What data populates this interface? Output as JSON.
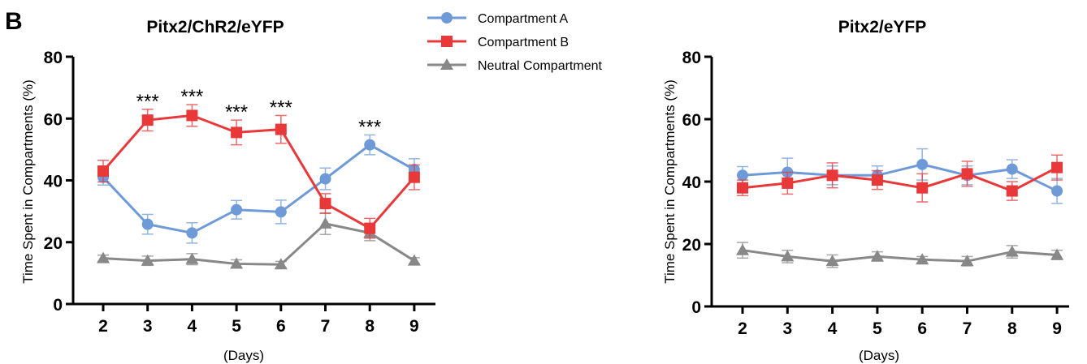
{
  "panel_label": "B",
  "legend": [
    {
      "label": "Compartment A",
      "color": "#6f9ad8",
      "marker": "circle"
    },
    {
      "label": "Compartment B",
      "color": "#e8383a",
      "marker": "square"
    },
    {
      "label": "Neutral Compartment",
      "color": "#888888",
      "marker": "triangle"
    }
  ],
  "chart_data": [
    {
      "type": "line",
      "title": "Pitx2/ChR2/eYFP",
      "xlabel": "(Days)",
      "ylabel": "Time Spent in Compartments (%)",
      "x": [
        2,
        3,
        4,
        5,
        6,
        7,
        8,
        9
      ],
      "ylim": [
        0,
        80
      ],
      "yticks": [
        0,
        20,
        40,
        60,
        80
      ],
      "series": [
        {
          "name": "Compartment A",
          "color": "#6f9ad8",
          "marker": "circle",
          "values": [
            41,
            25.8,
            23,
            30.5,
            29.8,
            40.5,
            51.5,
            43.5
          ],
          "errors": [
            2.5,
            3.2,
            3.3,
            3.0,
            3.8,
            3.5,
            3.2,
            3.5
          ]
        },
        {
          "name": "Compartment B",
          "color": "#e8383a",
          "marker": "square",
          "values": [
            43,
            59.5,
            61,
            55.5,
            56.5,
            32.5,
            24.5,
            41
          ],
          "errors": [
            3.5,
            3.5,
            3.5,
            4.0,
            4.5,
            3.2,
            3.2,
            4.0
          ]
        },
        {
          "name": "Neutral Compartment",
          "color": "#888888",
          "marker": "triangle",
          "values": [
            14.8,
            14,
            14.5,
            13,
            12.8,
            26,
            23,
            14
          ],
          "errors": [
            1.0,
            1.5,
            1.8,
            1.3,
            1.0,
            3.5,
            2.5,
            1.0
          ]
        }
      ],
      "annotations": [
        {
          "x": 3,
          "text": "***"
        },
        {
          "x": 4,
          "text": "***"
        },
        {
          "x": 5,
          "text": "***"
        },
        {
          "x": 6,
          "text": "***"
        },
        {
          "x": 8,
          "text": "***"
        }
      ]
    },
    {
      "type": "line",
      "title": "Pitx2/eYFP",
      "xlabel": "(Days)",
      "ylabel": "Time Spent in Compartments (%)",
      "x": [
        2,
        3,
        4,
        5,
        6,
        7,
        8,
        9
      ],
      "ylim": [
        0,
        80
      ],
      "yticks": [
        0,
        20,
        40,
        60,
        80
      ],
      "series": [
        {
          "name": "Compartment A",
          "color": "#6f9ad8",
          "marker": "circle",
          "values": [
            42,
            43,
            42,
            42,
            45.5,
            42,
            44,
            37
          ],
          "errors": [
            2.8,
            4.5,
            3.0,
            3.0,
            5.0,
            3.0,
            3.0,
            4.0
          ]
        },
        {
          "name": "Compartment B",
          "color": "#e8383a",
          "marker": "square",
          "values": [
            38,
            39.5,
            42,
            40.5,
            38,
            42.5,
            37,
            44.5
          ],
          "errors": [
            2.5,
            3.5,
            4.0,
            3.0,
            4.5,
            4.0,
            3.0,
            4.0
          ]
        },
        {
          "name": "Neutral Compartment",
          "color": "#888888",
          "marker": "triangle",
          "values": [
            18,
            16,
            14.5,
            16,
            15,
            14.5,
            17.5,
            16.5
          ],
          "errors": [
            2.5,
            2.0,
            2.0,
            1.5,
            1.0,
            1.5,
            2.0,
            1.5
          ]
        }
      ],
      "annotations": []
    }
  ]
}
